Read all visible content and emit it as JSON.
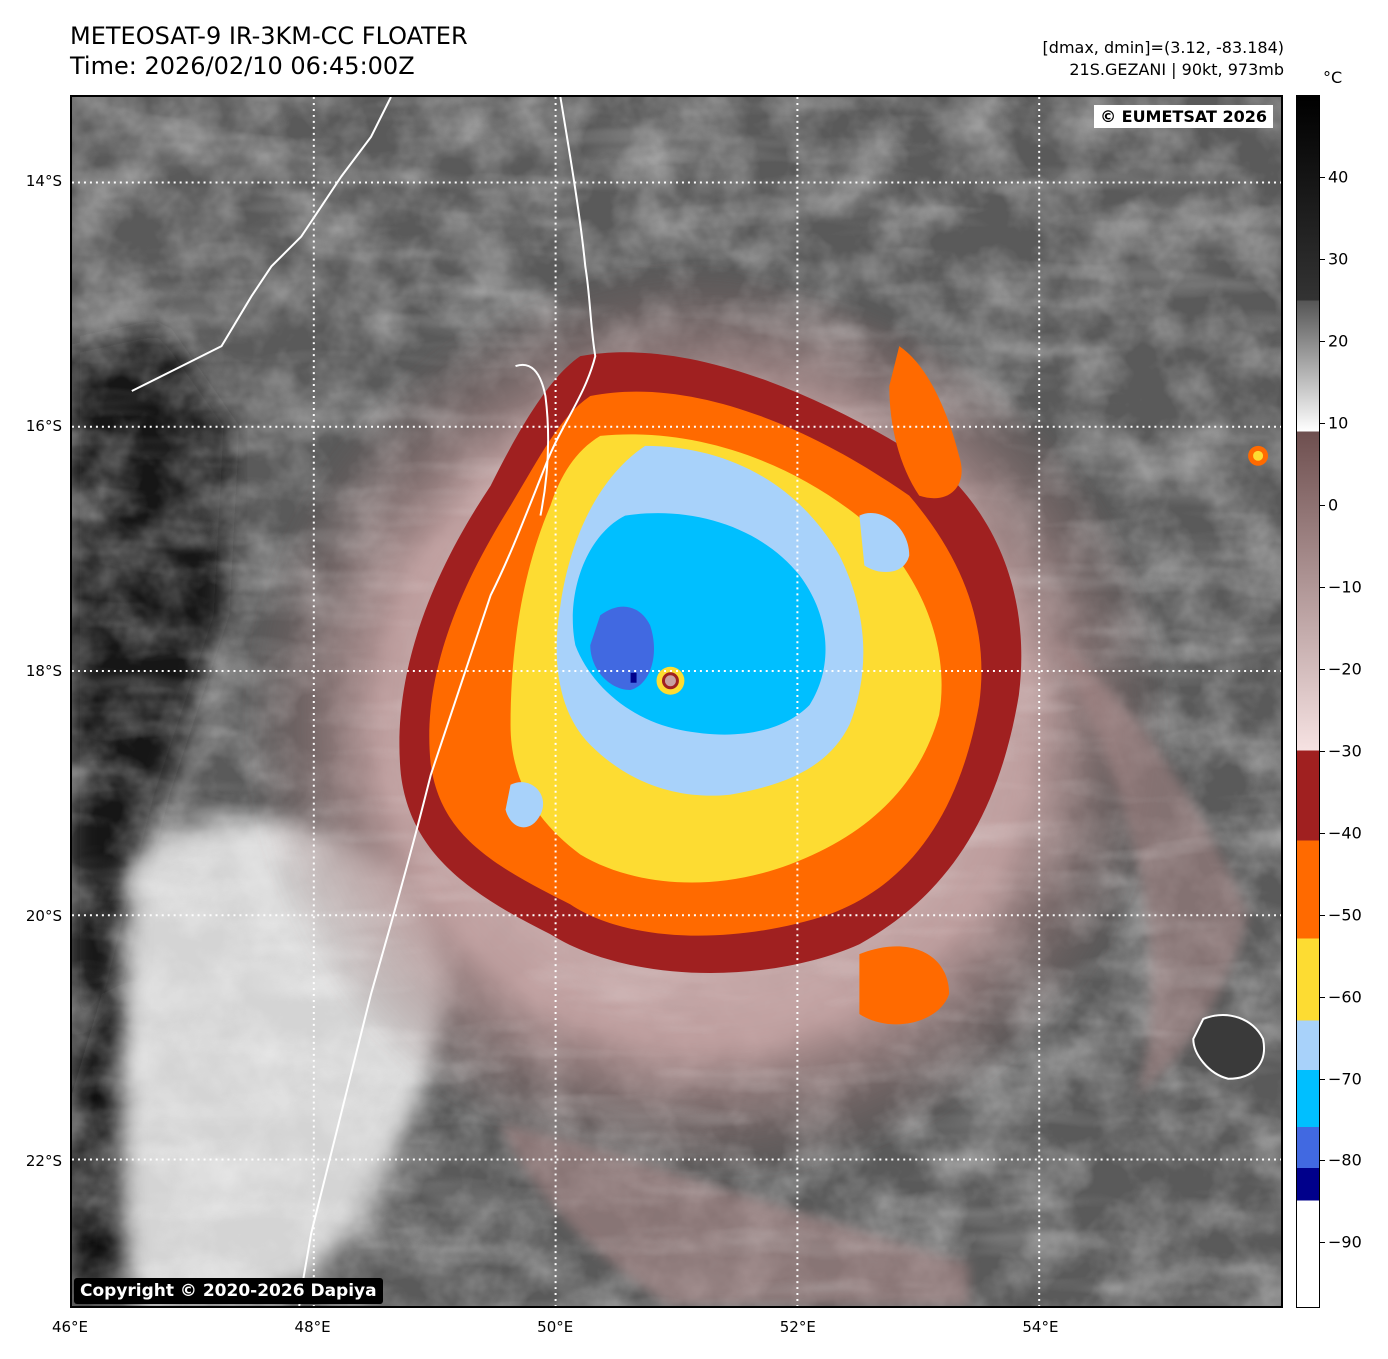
{
  "header": {
    "title_line1": "METEOSAT-9 IR-3KM-CC FLOATER",
    "title_line2": "Time: 2026/02/10 06:45:00Z",
    "meta_line1": "[dmax, dmin]=(3.12, -83.184)",
    "meta_line2": "21S.GEZANI | 90kt, 973mb"
  },
  "map": {
    "lon_range": [
      46,
      56
    ],
    "lat_range": [
      -23.2,
      -13.3
    ],
    "lat_labels": [
      {
        "text": "14°S",
        "lat": -14
      },
      {
        "text": "16°S",
        "lat": -16
      },
      {
        "text": "18°S",
        "lat": -18
      },
      {
        "text": "20°S",
        "lat": -20
      },
      {
        "text": "22°S",
        "lat": -22
      }
    ],
    "lon_labels": [
      {
        "text": "46°E",
        "lon": 46
      },
      {
        "text": "48°E",
        "lon": 48
      },
      {
        "text": "50°E",
        "lon": 50
      },
      {
        "text": "52°E",
        "lon": 52
      },
      {
        "text": "54°E",
        "lon": 54
      }
    ],
    "gridlines": true,
    "gridline_color": "#ffffff",
    "eumetsat_credit": "© EUMETSAT 2026",
    "dapiya_credit": "Copyright © 2020-2026 Dapiya",
    "storm_center": {
      "lon": 50.95,
      "lat": -18.08
    }
  },
  "colorbar": {
    "unit": "°C",
    "range": [
      -98,
      50
    ],
    "ticks": [
      "40",
      "30",
      "20",
      "10",
      "0",
      "−10",
      "−20",
      "−30",
      "−40",
      "−50",
      "−60",
      "−70",
      "−80",
      "−90"
    ],
    "tick_values": [
      40,
      30,
      20,
      10,
      0,
      -10,
      -20,
      -30,
      -40,
      -50,
      -60,
      -70,
      -80,
      -90
    ],
    "bands": [
      {
        "from": 50,
        "to": 25,
        "colors": [
          "#000000",
          "#333333"
        ]
      },
      {
        "from": 25,
        "to": 9,
        "colors": [
          "#555555",
          "#ffffff"
        ]
      },
      {
        "from": 9,
        "to": -30,
        "colors": [
          "#6e4f4f",
          "#f6e2e2"
        ]
      },
      {
        "from": -30,
        "to": -41,
        "colors": [
          "#a02020",
          "#a02020"
        ]
      },
      {
        "from": -41,
        "to": -53,
        "colors": [
          "#ff6a00",
          "#ff6a00"
        ]
      },
      {
        "from": -53,
        "to": -63,
        "colors": [
          "#fddc32",
          "#fddc32"
        ]
      },
      {
        "from": -63,
        "to": -69,
        "colors": [
          "#a8d2fa",
          "#a8d2fa"
        ]
      },
      {
        "from": -69,
        "to": -76,
        "colors": [
          "#00bfff",
          "#00bfff"
        ]
      },
      {
        "from": -76,
        "to": -81,
        "colors": [
          "#4169e1",
          "#4169e1"
        ]
      },
      {
        "from": -81,
        "to": -85,
        "colors": [
          "#00008b",
          "#00008b"
        ]
      },
      {
        "from": -85,
        "to": -98,
        "colors": [
          "#ffffff",
          "#ffffff"
        ]
      }
    ]
  }
}
